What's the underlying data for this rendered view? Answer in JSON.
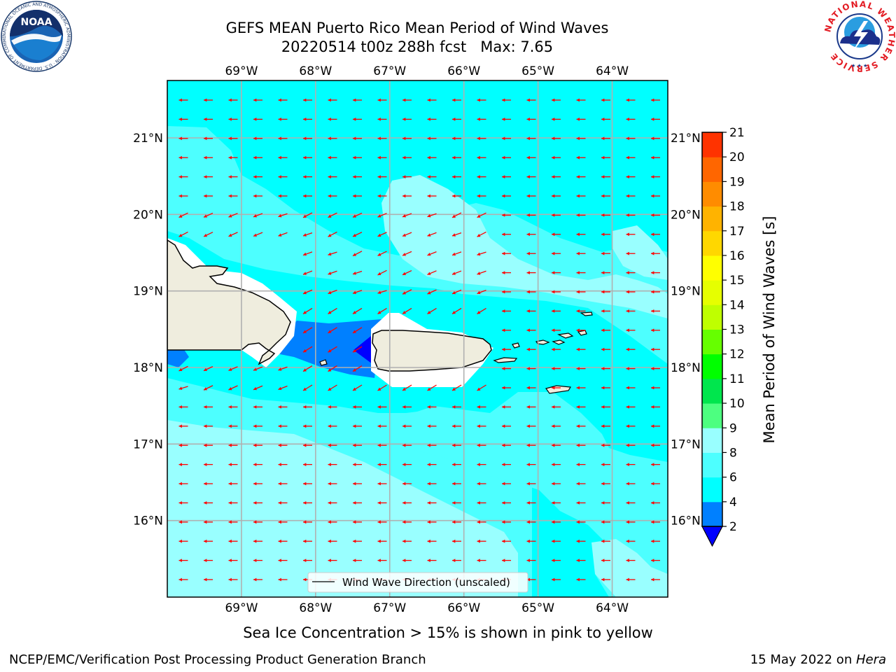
{
  "title": {
    "line1": "GEFS MEAN Puerto Rico Mean Period of Wind Waves",
    "line2": "20220514 t00z 288h fcst   Max: 7.65"
  },
  "map": {
    "lon_range": [
      -70.0,
      -63.25
    ],
    "lat_range": [
      15.0,
      21.75
    ],
    "lon_ticks": [
      {
        "value": -69,
        "label": "69°W"
      },
      {
        "value": -68,
        "label": "68°W"
      },
      {
        "value": -67,
        "label": "67°W"
      },
      {
        "value": -66,
        "label": "66°W"
      },
      {
        "value": -65,
        "label": "65°W"
      },
      {
        "value": -64,
        "label": "64°W"
      }
    ],
    "lat_ticks": [
      {
        "value": 16,
        "label": "16°N"
      },
      {
        "value": 17,
        "label": "17°N"
      },
      {
        "value": 18,
        "label": "18°N"
      },
      {
        "value": 19,
        "label": "19°N"
      },
      {
        "value": 20,
        "label": "20°N"
      },
      {
        "value": 21,
        "label": "21°N"
      }
    ],
    "ocean_color": "#00ffff",
    "land_color": "#efedde",
    "arrow_color": "#ff0000",
    "legend_label": "Wind Wave Direction (unscaled)"
  },
  "colorbar": {
    "label": "Mean Period of Wind Waves [s]",
    "levels": [
      2,
      4,
      6,
      8,
      9,
      10,
      11,
      12,
      13,
      14,
      15,
      16,
      17,
      18,
      19,
      20,
      21
    ],
    "tick_labels": [
      "2",
      "4",
      "6",
      "8",
      "9",
      "10",
      "11",
      "12",
      "13",
      "14",
      "15",
      "16",
      "17",
      "18",
      "19",
      "20",
      "21"
    ],
    "colors": [
      "#0080ff",
      "#00ffff",
      "#4dffff",
      "#99ffff",
      "#4dff80",
      "#00e64d",
      "#00ff00",
      "#66ff00",
      "#bfff00",
      "#e6ff00",
      "#ffff00",
      "#ffd700",
      "#ffb300",
      "#ff8c00",
      "#ff6600",
      "#ff3300"
    ],
    "under_color": "#0000ff"
  },
  "caption": "Sea Ice Concentration > 15% is shown in pink to yellow",
  "footer": {
    "left": "NCEP/EMC/Verification Post Processing Product Generation Branch",
    "date": "15 May 2022 on ",
    "machine": "Hera"
  },
  "logos": {
    "noaa_text": "NOAA",
    "noaa_ring": "NATIONAL OCEANIC AND ATMOSPHERIC ADMINISTRATION · U.S. DEPARTMENT OF COMMERCE ·",
    "nws_ring": "NATIONAL WEATHER SERVICE"
  }
}
